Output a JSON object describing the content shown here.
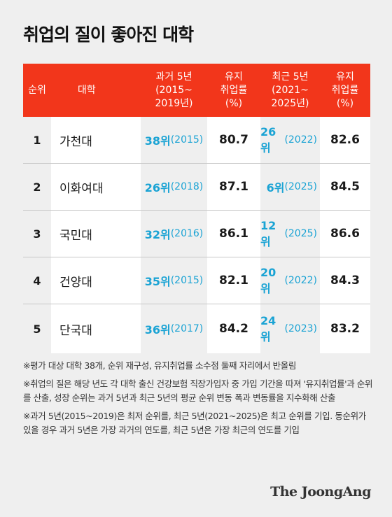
{
  "title": "취업의 질이 좋아진 대학",
  "headers": {
    "rank": "순위",
    "university": "대학",
    "past_rank": [
      "과거 5년",
      "(2015~",
      "2019년)"
    ],
    "past_rate": [
      "유지",
      "취업률",
      "(%)"
    ],
    "recent_rank": [
      "최근 5년",
      "(2021~",
      "2025년)"
    ],
    "recent_rate": [
      "유지",
      "취업률",
      "(%)"
    ]
  },
  "rows": [
    {
      "rank": "1",
      "name": "가천대",
      "past_rank": "38위",
      "past_year": "(2015)",
      "past_rate": "80.7",
      "recent_rank": "26위",
      "recent_year": "(2022)",
      "recent_rate": "82.6"
    },
    {
      "rank": "2",
      "name": "이화여대",
      "past_rank": "26위",
      "past_year": "(2018)",
      "past_rate": "87.1",
      "recent_rank": "6위",
      "recent_year": "(2025)",
      "recent_rate": "84.5"
    },
    {
      "rank": "3",
      "name": "국민대",
      "past_rank": "32위",
      "past_year": "(2016)",
      "past_rate": "86.1",
      "recent_rank": "12위",
      "recent_year": "(2025)",
      "recent_rate": "86.6"
    },
    {
      "rank": "4",
      "name": "건양대",
      "past_rank": "35위",
      "past_year": "(2015)",
      "past_rate": "82.1",
      "recent_rank": "20위",
      "recent_year": "(2022)",
      "recent_rate": "84.3"
    },
    {
      "rank": "5",
      "name": "단국대",
      "past_rank": "36위",
      "past_year": "(2017)",
      "past_rate": "84.2",
      "recent_rank": "24위",
      "recent_year": "(2023)",
      "recent_rate": "83.2"
    }
  ],
  "notes": [
    "※평가 대상 대학 38개, 순위 재구성, 유지취업률 소수점 둘째 자리에서 반올림",
    "※취업의 질은 해당 년도 각 대학 출신 건강보험 직장가입자 중 가입 기간을 따져 '유지취업률'과 순위를 산출, 성장 순위는 과거 5년과 최근 5년의 평균 순위 변동 폭과 변동률을 지수화해 산출",
    "※과거 5년(2015~2019)은 최저 순위를, 최근 5년(2021~2025)은 최고 순위를 기입. 동순위가 있을 경우 과거 5년은 가장 과거의 연도를, 최근 5년은 가장 최근의 연도를 기입"
  ],
  "brand": "The JoongAng",
  "colors": {
    "header_bg": "#f2361b",
    "accent": "#1aa3d4",
    "bg": "#efefef"
  }
}
